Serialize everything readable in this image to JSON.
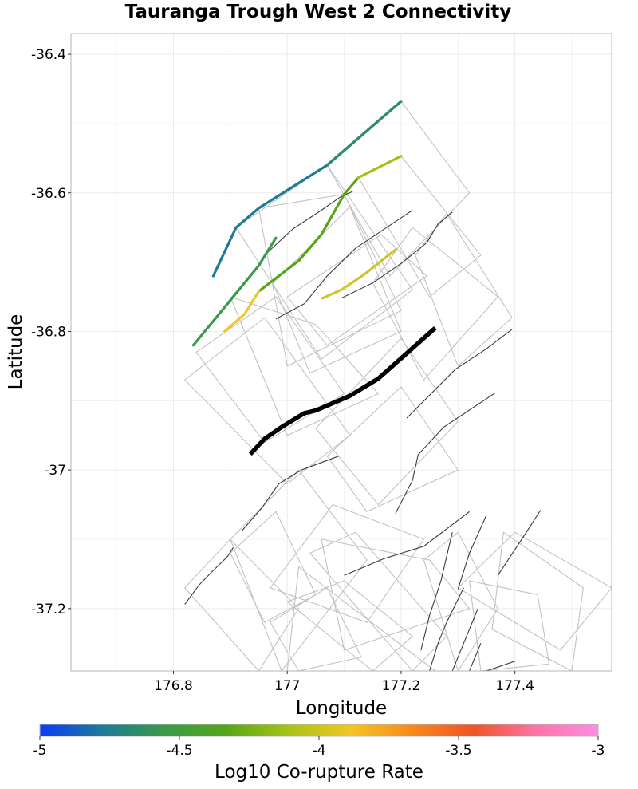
{
  "chart_data": {
    "type": "map-lines",
    "title": "Tauranga Trough West 2 Connectivity",
    "xlabel": "Longitude",
    "ylabel": "Latitude",
    "xlim": [
      176.62,
      177.57
    ],
    "ylim": [
      -37.29,
      -36.37
    ],
    "x_ticks": [
      176.8,
      177.0,
      177.2,
      177.4
    ],
    "x_tick_labels": [
      "176.8",
      "177",
      "177.2",
      "177.4"
    ],
    "y_ticks": [
      -36.4,
      -36.6,
      -36.8,
      -37.0,
      -37.2
    ],
    "y_tick_labels": [
      "-36.4",
      "-36.6",
      "-36.8",
      "-37",
      "-37.2"
    ],
    "grid": true,
    "colors": {
      "target": "#000000",
      "context_trace": "#3a3a3a",
      "context_polygon": "#c2c2c2",
      "grid": "#ebebeb",
      "panel_border": "#b5b5b5"
    },
    "colorbar": {
      "label": "Log10 Co-rupture Rate",
      "min": -5,
      "max": -3,
      "ticks": [
        -5,
        -4.5,
        -4,
        -3.5,
        -3
      ],
      "tick_labels": [
        "-5",
        "-4.5",
        "-4",
        "-3.5",
        "-3"
      ],
      "stops": [
        "#0a3cf5",
        "#1e7a98",
        "#3a9a4a",
        "#56a518",
        "#a6c21a",
        "#f3c624",
        "#f48a1d",
        "#ee5327",
        "#fc74a8",
        "#fa8ee2"
      ]
    },
    "target_fault": {
      "name": "Tauranga Trough West 2",
      "trace": [
        [
          176.935,
          -36.977
        ],
        [
          176.96,
          -36.955
        ],
        [
          176.99,
          -36.938
        ],
        [
          177.03,
          -36.918
        ],
        [
          177.05,
          -36.914
        ],
        [
          177.11,
          -36.893
        ],
        [
          177.16,
          -36.868
        ],
        [
          177.26,
          -36.795
        ]
      ]
    },
    "connected_faults": [
      {
        "log10_rate": -4.88,
        "color": "#1e7a98",
        "trace": [
          [
            176.87,
            -36.72
          ],
          [
            176.91,
            -36.65
          ],
          [
            176.95,
            -36.622
          ],
          [
            177.07,
            -36.56
          ],
          [
            177.2,
            -36.468
          ]
        ]
      },
      {
        "log10_rate": -4.7,
        "color": "#2f8a6e",
        "trace": [
          [
            177.07,
            -36.56
          ],
          [
            177.2,
            -36.468
          ]
        ]
      },
      {
        "log10_rate": -4.55,
        "color": "#3a9a4a",
        "trace": [
          [
            176.835,
            -36.82
          ],
          [
            176.895,
            -36.76
          ],
          [
            176.95,
            -36.705
          ],
          [
            176.98,
            -36.665
          ]
        ]
      },
      {
        "log10_rate": -4.45,
        "color": "#56a518",
        "trace": [
          [
            176.95,
            -36.742
          ],
          [
            177.02,
            -36.698
          ],
          [
            177.06,
            -36.66
          ],
          [
            177.1,
            -36.602
          ],
          [
            177.125,
            -36.578
          ]
        ]
      },
      {
        "log10_rate": -4.25,
        "color": "#a6c21a",
        "trace": [
          [
            177.125,
            -36.578
          ],
          [
            177.2,
            -36.547
          ]
        ]
      },
      {
        "log10_rate": -4.05,
        "color": "#f0c62a",
        "trace": [
          [
            176.89,
            -36.8
          ],
          [
            176.925,
            -36.775
          ],
          [
            176.95,
            -36.742
          ]
        ]
      },
      {
        "log10_rate": -4.15,
        "color": "#d2c426",
        "trace": [
          [
            177.062,
            -36.752
          ],
          [
            177.095,
            -36.74
          ],
          [
            177.135,
            -36.718
          ],
          [
            177.19,
            -36.682
          ]
        ]
      }
    ],
    "context_fault_traces": [
      [
        [
          176.98,
          -36.782
        ],
        [
          177.03,
          -36.76
        ],
        [
          177.07,
          -36.72
        ],
        [
          177.12,
          -36.68
        ],
        [
          177.22,
          -36.625
        ]
      ],
      [
        [
          176.96,
          -36.69
        ],
        [
          177.01,
          -36.652
        ],
        [
          177.06,
          -36.625
        ],
        [
          177.095,
          -36.605
        ],
        [
          177.115,
          -36.598
        ]
      ],
      [
        [
          177.095,
          -36.752
        ],
        [
          177.15,
          -36.73
        ],
        [
          177.2,
          -36.702
        ],
        [
          177.245,
          -36.672
        ],
        [
          177.265,
          -36.645
        ],
        [
          177.29,
          -36.628
        ]
      ],
      [
        [
          177.21,
          -36.925
        ],
        [
          177.295,
          -36.855
        ],
        [
          177.35,
          -36.825
        ],
        [
          177.395,
          -36.797
        ]
      ],
      [
        [
          176.92,
          -37.088
        ],
        [
          176.955,
          -37.055
        ],
        [
          176.985,
          -37.02
        ],
        [
          177.025,
          -37.0
        ],
        [
          177.09,
          -36.98
        ]
      ],
      [
        [
          176.82,
          -37.194
        ],
        [
          176.845,
          -37.166
        ],
        [
          176.87,
          -37.145
        ],
        [
          176.895,
          -37.125
        ],
        [
          176.905,
          -37.112
        ]
      ],
      [
        [
          177.1,
          -37.152
        ],
        [
          177.17,
          -37.128
        ],
        [
          177.24,
          -37.11
        ],
        [
          177.32,
          -37.06
        ]
      ],
      [
        [
          177.19,
          -37.063
        ],
        [
          177.22,
          -37.015
        ],
        [
          177.23,
          -36.978
        ],
        [
          177.275,
          -36.938
        ],
        [
          177.365,
          -36.889
        ]
      ],
      [
        [
          177.235,
          -37.26
        ],
        [
          177.25,
          -37.21
        ],
        [
          177.27,
          -37.16
        ],
        [
          177.29,
          -37.09
        ]
      ],
      [
        [
          177.25,
          -37.29
        ],
        [
          177.265,
          -37.25
        ],
        [
          177.28,
          -37.22
        ],
        [
          177.31,
          -37.17
        ]
      ],
      [
        [
          177.29,
          -37.29
        ],
        [
          177.31,
          -37.25
        ],
        [
          177.335,
          -37.2
        ]
      ],
      [
        [
          177.32,
          -37.29
        ],
        [
          177.34,
          -37.25
        ]
      ],
      [
        [
          177.35,
          -37.29
        ],
        [
          177.4,
          -37.276
        ]
      ],
      [
        [
          177.37,
          -37.152
        ],
        [
          177.42,
          -37.09
        ],
        [
          177.445,
          -37.058
        ]
      ],
      [
        [
          177.3,
          -37.172
        ],
        [
          177.32,
          -37.12
        ],
        [
          177.35,
          -37.065
        ]
      ]
    ],
    "context_fault_polygons": [
      [
        [
          177.07,
          -36.56
        ],
        [
          177.2,
          -36.468
        ],
        [
          177.32,
          -36.6
        ],
        [
          177.18,
          -36.72
        ]
      ],
      [
        [
          177.125,
          -36.578
        ],
        [
          177.2,
          -36.547
        ],
        [
          177.34,
          -36.69
        ],
        [
          177.25,
          -36.75
        ]
      ],
      [
        [
          176.91,
          -36.65
        ],
        [
          177.07,
          -36.56
        ],
        [
          177.22,
          -36.74
        ],
        [
          177.06,
          -36.84
        ]
      ],
      [
        [
          176.95,
          -36.622
        ],
        [
          177.1,
          -36.602
        ],
        [
          177.2,
          -36.77
        ],
        [
          177.0,
          -36.85
        ]
      ],
      [
        [
          176.975,
          -36.73
        ],
        [
          177.11,
          -36.62
        ],
        [
          177.2,
          -36.8
        ],
        [
          177.04,
          -36.86
        ]
      ],
      [
        [
          177.0,
          -36.75
        ],
        [
          177.165,
          -36.66
        ],
        [
          177.245,
          -36.72
        ],
        [
          177.07,
          -36.82
        ]
      ],
      [
        [
          176.84,
          -36.83
        ],
        [
          176.98,
          -36.75
        ],
        [
          177.1,
          -36.89
        ],
        [
          176.96,
          -36.96
        ]
      ],
      [
        [
          176.82,
          -36.87
        ],
        [
          176.96,
          -36.78
        ],
        [
          177.11,
          -36.95
        ],
        [
          177.0,
          -37.02
        ]
      ],
      [
        [
          176.9,
          -36.75
        ],
        [
          177.05,
          -36.79
        ],
        [
          177.16,
          -36.89
        ],
        [
          177.0,
          -36.95
        ]
      ],
      [
        [
          177.15,
          -36.73
        ],
        [
          177.22,
          -36.65
        ],
        [
          177.37,
          -36.75
        ],
        [
          177.24,
          -36.87
        ]
      ],
      [
        [
          177.225,
          -36.69
        ],
        [
          177.28,
          -36.63
        ],
        [
          177.395,
          -36.78
        ],
        [
          177.3,
          -36.85
        ]
      ],
      [
        [
          177.05,
          -36.94
        ],
        [
          177.2,
          -36.81
        ],
        [
          177.3,
          -36.93
        ],
        [
          177.16,
          -37.05
        ]
      ],
      [
        [
          177.07,
          -36.98
        ],
        [
          177.2,
          -36.88
        ],
        [
          177.3,
          -37.0
        ],
        [
          177.14,
          -37.06
        ]
      ],
      [
        [
          176.9,
          -37.1
        ],
        [
          177.02,
          -37.0
        ],
        [
          177.14,
          -37.13
        ],
        [
          176.99,
          -37.29
        ]
      ],
      [
        [
          176.97,
          -37.17
        ],
        [
          177.08,
          -37.05
        ],
        [
          177.24,
          -37.1
        ],
        [
          177.14,
          -37.22
        ]
      ],
      [
        [
          177.06,
          -37.1
        ],
        [
          177.25,
          -37.13
        ],
        [
          177.32,
          -37.2
        ],
        [
          177.1,
          -37.26
        ]
      ],
      [
        [
          177.04,
          -37.12
        ],
        [
          177.12,
          -37.09
        ],
        [
          177.28,
          -37.24
        ],
        [
          177.22,
          -37.29
        ]
      ],
      [
        [
          177.02,
          -37.14
        ],
        [
          177.26,
          -37.29
        ],
        [
          177.0,
          -37.29
        ]
      ],
      [
        [
          177.3,
          -37.17
        ],
        [
          177.4,
          -37.09
        ],
        [
          177.57,
          -37.17
        ],
        [
          177.48,
          -37.26
        ]
      ],
      [
        [
          177.38,
          -37.09
        ],
        [
          177.52,
          -37.17
        ],
        [
          177.5,
          -37.29
        ],
        [
          177.36,
          -37.23
        ]
      ],
      [
        [
          177.32,
          -37.16
        ],
        [
          177.44,
          -37.18
        ],
        [
          177.46,
          -37.28
        ],
        [
          177.34,
          -37.29
        ]
      ],
      [
        [
          177.0,
          -37.19
        ],
        [
          177.1,
          -37.16
        ],
        [
          177.22,
          -37.24
        ],
        [
          177.15,
          -37.29
        ]
      ],
      [
        [
          177.24,
          -37.13
        ],
        [
          177.3,
          -37.09
        ],
        [
          177.37,
          -37.2
        ],
        [
          177.3,
          -37.29
        ]
      ],
      [
        [
          176.97,
          -37.22
        ],
        [
          177.07,
          -37.17
        ],
        [
          177.13,
          -37.27
        ],
        [
          177.02,
          -37.29
        ]
      ],
      [
        [
          176.82,
          -37.17
        ],
        [
          176.9,
          -37.1
        ],
        [
          177.02,
          -37.2
        ],
        [
          176.95,
          -37.29
        ]
      ],
      [
        [
          176.9,
          -37.12
        ],
        [
          176.98,
          -37.06
        ],
        [
          177.05,
          -37.18
        ],
        [
          176.96,
          -37.22
        ]
      ]
    ]
  }
}
